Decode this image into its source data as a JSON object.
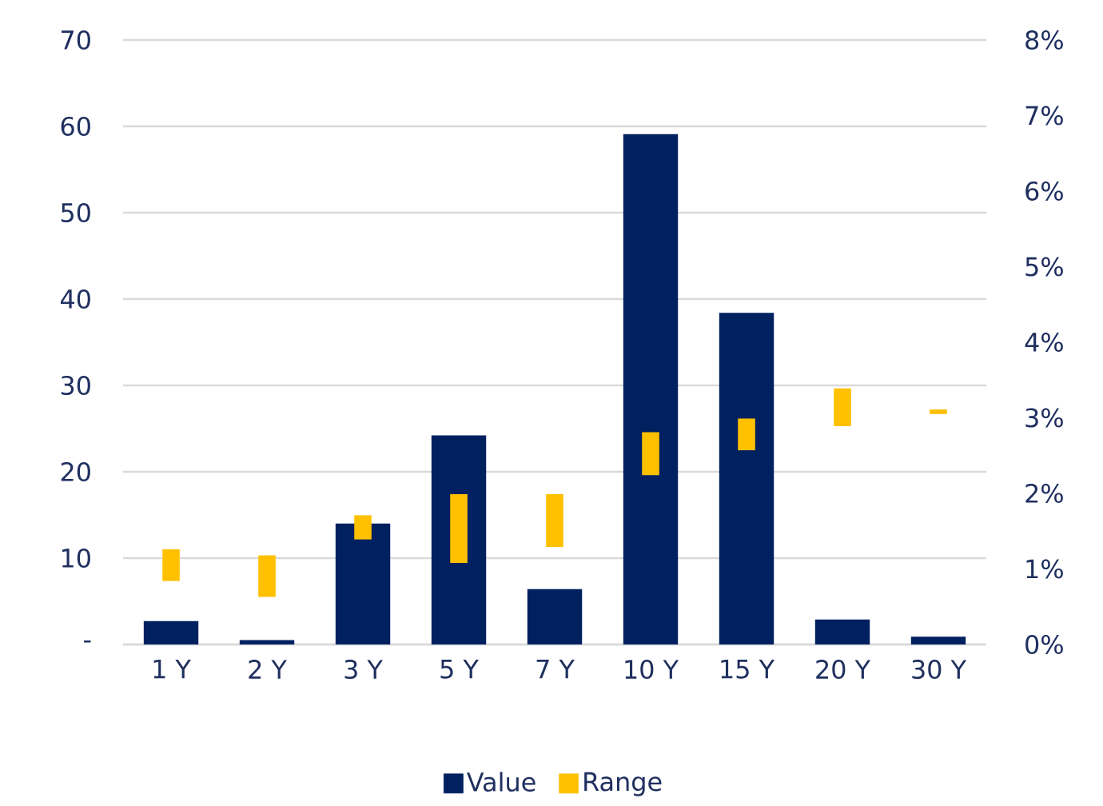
{
  "chart_data": {
    "type": "bar",
    "categories": [
      "1 Y",
      "2 Y",
      "3 Y",
      "5 Y",
      "7 Y",
      "10 Y",
      "15 Y",
      "20 Y",
      "30 Y"
    ],
    "series": [
      {
        "name": "Value",
        "color": "#002060",
        "values": [
          2.7,
          0.5,
          14.0,
          24.2,
          6.4,
          59.1,
          38.4,
          2.9,
          0.9
        ]
      },
      {
        "name": "Range",
        "color": "#ffc000",
        "axis": "y2",
        "base": [
          0.84,
          0.63,
          1.39,
          1.08,
          1.29,
          2.24,
          2.57,
          2.89,
          3.05
        ],
        "values": [
          0.42,
          0.55,
          0.32,
          0.91,
          0.7,
          0.57,
          0.42,
          0.5,
          0.06
        ]
      }
    ],
    "ylim": [
      0,
      70
    ],
    "yticks": [
      {
        "value": 0,
        "label": "-"
      },
      10,
      20,
      30,
      40,
      50,
      60,
      70
    ],
    "y2lim": [
      0,
      8
    ],
    "y2ticks": [
      {
        "value": 0,
        "label": "0%"
      },
      {
        "value": 1,
        "label": "1%"
      },
      {
        "value": 2,
        "label": "2%"
      },
      {
        "value": 3,
        "label": "3%"
      },
      {
        "value": 4,
        "label": "4%"
      },
      {
        "value": 5,
        "label": "5%"
      },
      {
        "value": 6,
        "label": "6%"
      },
      {
        "value": 7,
        "label": "7%"
      },
      {
        "value": 8,
        "label": "8%"
      }
    ],
    "grid": "y",
    "legend": "bottom"
  }
}
